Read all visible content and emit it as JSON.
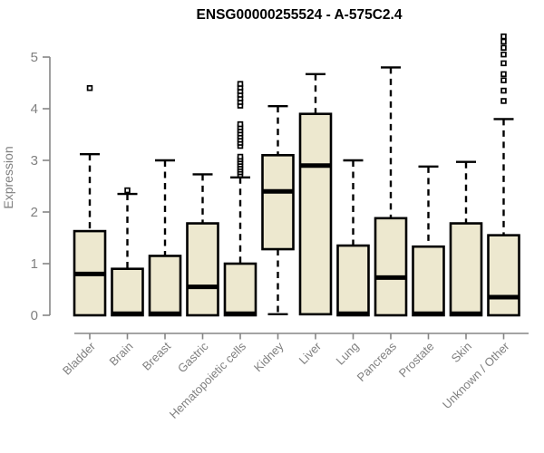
{
  "chart_data": {
    "type": "boxplot",
    "title": "ENSG00000255524 - A-575C2.4",
    "ylabel": "Expression",
    "xlabel": "",
    "ylim": [
      0,
      5.5
    ],
    "yticks": [
      0,
      1,
      2,
      3,
      4,
      5
    ],
    "grid": false,
    "legend": "none",
    "box_fill_color": "#EDE8CF",
    "box_edge_color": "#000000",
    "whisker_color": "#000000",
    "axis_color": "#858585",
    "tick_label_color": "#808080",
    "title_color": "#000000",
    "categories": [
      "Bladder",
      "Brain",
      "Breast",
      "Gastric",
      "Hematopoietic cells",
      "Kidney",
      "Liver",
      "Lung",
      "Pancreas",
      "Prostate",
      "Skin",
      "Unknown / Other"
    ],
    "series": [
      {
        "name": "Bladder",
        "whisker_low": 0,
        "q1": 0,
        "median": 0.8,
        "q3": 1.63,
        "whisker_high": 3.12,
        "outliers": [
          4.4
        ]
      },
      {
        "name": "Brain",
        "whisker_low": 0,
        "q1": 0,
        "median": 0.03,
        "q3": 0.9,
        "whisker_high": 2.35,
        "outliers": [
          2.42
        ]
      },
      {
        "name": "Breast",
        "whisker_low": 0,
        "q1": 0,
        "median": 0.03,
        "q3": 1.15,
        "whisker_high": 3.0,
        "outliers": []
      },
      {
        "name": "Gastric",
        "whisker_low": 0,
        "q1": 0,
        "median": 0.55,
        "q3": 1.78,
        "whisker_high": 2.73,
        "outliers": []
      },
      {
        "name": "Hematopoietic cells",
        "whisker_low": 0,
        "q1": 0,
        "median": 0.03,
        "q3": 1.0,
        "whisker_high": 2.67,
        "outliers": [
          2.72,
          2.77,
          2.82,
          2.87,
          2.92,
          2.97,
          3.02,
          3.07,
          3.28,
          3.34,
          3.4,
          3.46,
          3.52,
          3.58,
          3.64,
          3.7,
          4.06,
          4.13,
          4.2,
          4.27,
          4.34,
          4.41,
          4.48
        ]
      },
      {
        "name": "Kidney",
        "whisker_low": 0.02,
        "q1": 1.28,
        "median": 2.4,
        "q3": 3.1,
        "whisker_high": 4.05,
        "outliers": []
      },
      {
        "name": "Liver",
        "whisker_low": 0.02,
        "q1": 0.02,
        "median": 2.9,
        "q3": 3.9,
        "whisker_high": 4.67,
        "outliers": []
      },
      {
        "name": "Lung",
        "whisker_low": 0,
        "q1": 0,
        "median": 0.03,
        "q3": 1.35,
        "whisker_high": 3.0,
        "outliers": []
      },
      {
        "name": "Pancreas",
        "whisker_low": 0,
        "q1": 0,
        "median": 0.73,
        "q3": 1.88,
        "whisker_high": 4.8,
        "outliers": []
      },
      {
        "name": "Prostate",
        "whisker_low": 0,
        "q1": 0,
        "median": 0.03,
        "q3": 1.33,
        "whisker_high": 2.88,
        "outliers": []
      },
      {
        "name": "Skin",
        "whisker_low": 0,
        "q1": 0,
        "median": 0.03,
        "q3": 1.78,
        "whisker_high": 2.97,
        "outliers": []
      },
      {
        "name": "Unknown / Other",
        "whisker_low": 0,
        "q1": 0,
        "median": 0.35,
        "q3": 1.55,
        "whisker_high": 3.8,
        "outliers": [
          4.15,
          4.35,
          4.55,
          4.67,
          4.88,
          5.05,
          5.18,
          5.3,
          5.4
        ]
      }
    ]
  }
}
